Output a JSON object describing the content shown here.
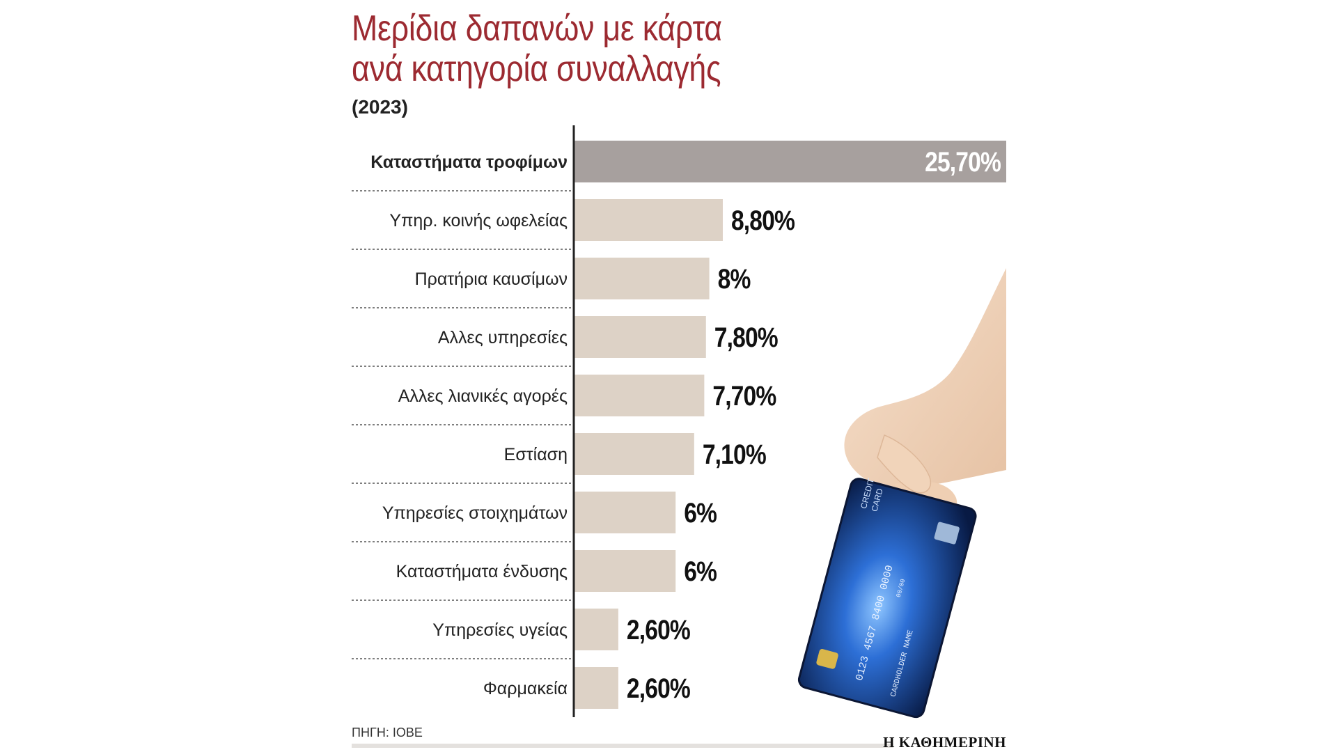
{
  "header": {
    "title_line1": "Μερίδια δαπανών με κάρτα",
    "title_line2": "ανά κατηγορία συναλλαγής",
    "subtitle": "(2023)"
  },
  "footer": {
    "source": "ΠΗΓΗ: ΙΟΒΕ",
    "brand": "Η ΚΑΘΗΜΕΡΙΝΗ"
  },
  "colors": {
    "title": "#9c2a31",
    "bar_highlight": "#a7a09e",
    "bar_default": "#ddd2c6",
    "label_text": "#222222",
    "value_text": "#111111",
    "highlight_value_text": "#ffffff"
  },
  "chart_data": {
    "type": "bar",
    "orientation": "horizontal",
    "categories": [
      "Καταστήματα τροφίμων",
      "Υπηρ. κοινής ωφελείας",
      "Πρατήρια καυσίμων",
      "Αλλες υπηρεσίες",
      "Αλλες λιανικές αγορές",
      "Εστίαση",
      "Υπηρεσίες στοιχημάτων",
      "Καταστήματα ένδυσης",
      "Υπηρεσίες υγείας",
      "Φαρμακεία"
    ],
    "values": [
      25.7,
      8.8,
      8,
      7.8,
      7.7,
      7.1,
      6,
      6,
      2.6,
      2.6
    ],
    "value_labels": [
      "25,70%",
      "8,80%",
      "8%",
      "7,80%",
      "7,70%",
      "7,10%",
      "6%",
      "6%",
      "2,60%",
      "2,60%"
    ],
    "highlight_index": 0,
    "grid": false,
    "legend": "none"
  },
  "illustration": {
    "card_lines": [
      "CREDIT",
      "CARD"
    ],
    "card_number": "0123 4567 8400 0000",
    "card_holder": "CARDHOLDER NAME",
    "card_expiry": "00/00"
  }
}
